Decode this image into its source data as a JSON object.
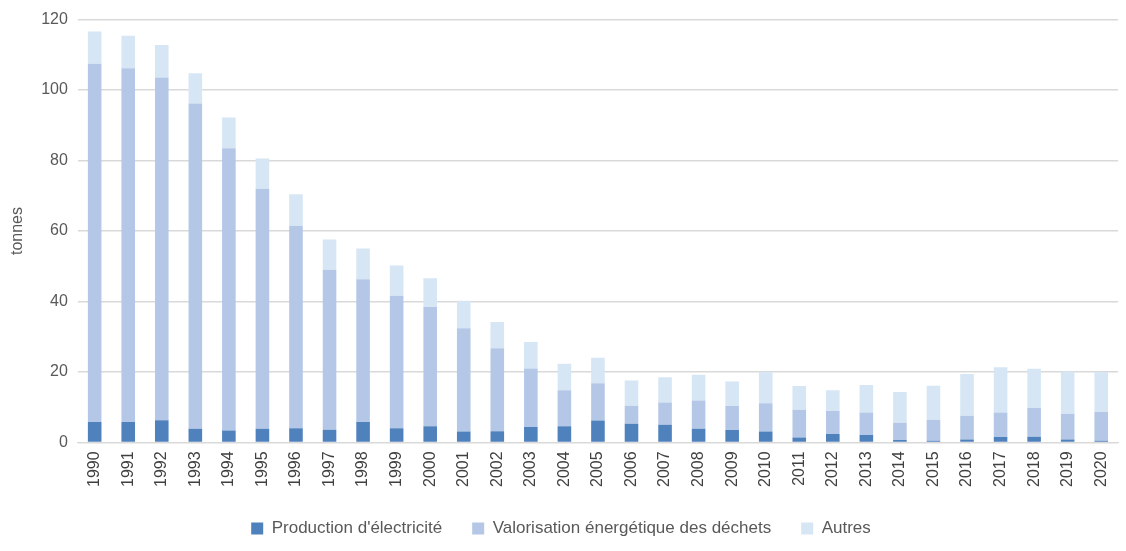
{
  "chart_data": {
    "type": "bar",
    "stacked": true,
    "ylabel": "tonnes",
    "categories": [
      "1990",
      "1991",
      "1992",
      "1993",
      "1994",
      "1995",
      "1996",
      "1997",
      "1998",
      "1999",
      "2000",
      "2001",
      "2002",
      "2003",
      "2004",
      "2005",
      "2006",
      "2007",
      "2008",
      "2009",
      "2010",
      "2011",
      "2012",
      "2013",
      "2014",
      "2015",
      "2016",
      "2017",
      "2018",
      "2019",
      "2020"
    ],
    "series": [
      {
        "name": "Production d'électricité",
        "color": "#4f81bd",
        "values": [
          5.8,
          5.8,
          6.3,
          3.9,
          3.4,
          3.9,
          4,
          3.6,
          5.8,
          4,
          4.6,
          3.1,
          3.2,
          4.4,
          4.6,
          6.2,
          5.3,
          5,
          3.9,
          3.5,
          3.1,
          1.4,
          2.4,
          2.1,
          0.7,
          0.5,
          0.8,
          1.5,
          1.6,
          0.8,
          0.5
        ]
      },
      {
        "name": "Valorisation énergétique des déchets",
        "color": "#b4c7e7",
        "values": [
          101.7,
          100.4,
          97.3,
          92.3,
          80.1,
          68.1,
          57.5,
          45.4,
          40.5,
          37.6,
          33.8,
          29.3,
          23.5,
          16.6,
          10.2,
          10.6,
          5.1,
          6.3,
          8,
          6.8,
          8,
          7.9,
          6.5,
          6.4,
          4.9,
          5.9,
          6.8,
          7,
          8.2,
          7.3,
          8.1
        ]
      },
      {
        "name": "Autres",
        "color": "#d6e6f4",
        "values": [
          9.1,
          9.2,
          9.2,
          8.6,
          8.7,
          8.6,
          8.9,
          8.6,
          8.7,
          8.6,
          8.2,
          7.8,
          7.5,
          7.5,
          7.5,
          7.2,
          7.2,
          7.2,
          7.3,
          7,
          8.9,
          6.7,
          5.9,
          7.8,
          8.7,
          9.7,
          11.8,
          12.8,
          11.1,
          12,
          11.4
        ]
      }
    ],
    "ylim": [
      0,
      120
    ],
    "yticks": [
      0,
      20,
      40,
      60,
      80,
      100,
      120
    ],
    "grid": "y",
    "legend": "bottom"
  }
}
